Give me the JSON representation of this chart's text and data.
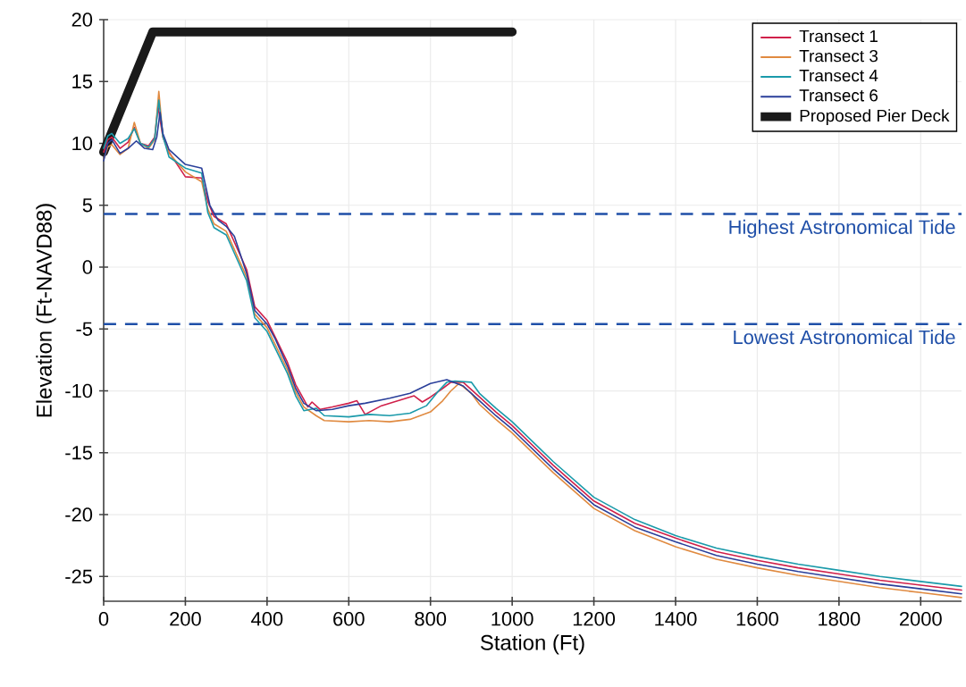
{
  "chart_data": {
    "type": "line",
    "xlabel": "Station (Ft)",
    "ylabel": "Elevation (Ft-NAVD88)",
    "xlim": [
      0,
      2100
    ],
    "ylim": [
      -27,
      20
    ],
    "xticks": [
      0,
      200,
      400,
      600,
      800,
      1000,
      1200,
      1400,
      1600,
      1800,
      2000
    ],
    "yticks": [
      -25,
      -20,
      -15,
      -10,
      -5,
      0,
      5,
      10,
      15,
      20
    ],
    "grid": true,
    "legend": "top right",
    "line_style": "solid",
    "marker": "none",
    "ref_lines": [
      {
        "axis": "y",
        "value": 4.3,
        "label": "Highest Astronomical Tide",
        "color": "#1f4fa8",
        "line_style": "dashed"
      },
      {
        "axis": "y",
        "value": -4.6,
        "label": "Lowest Astronomical Tide",
        "color": "#1f4fa8",
        "line_style": "dashed"
      }
    ],
    "series": [
      {
        "name": "Transect 1",
        "color": "#d0204a",
        "x": [
          0,
          10,
          20,
          40,
          60,
          75,
          90,
          110,
          125,
          133,
          145,
          160,
          200,
          240,
          255,
          270,
          300,
          350,
          370,
          400,
          450,
          470,
          490,
          500,
          510,
          530,
          560,
          600,
          620,
          640,
          680,
          720,
          760,
          780,
          800,
          830,
          850,
          880,
          920,
          960,
          1000,
          1100,
          1200,
          1300,
          1400,
          1500,
          1600,
          1700,
          1800,
          1900,
          2000,
          2100
        ],
        "values": [
          9.3,
          10.3,
          10.5,
          9.6,
          10.1,
          11.3,
          10,
          9.8,
          10.5,
          13,
          10.5,
          9.3,
          7.3,
          7.2,
          5.3,
          4.1,
          3.5,
          -0.2,
          -3.2,
          -4.3,
          -7.7,
          -9.5,
          -10.7,
          -11.3,
          -10.9,
          -11.5,
          -11.3,
          -11,
          -10.8,
          -11.9,
          -11.2,
          -10.8,
          -10.4,
          -10.9,
          -10.5,
          -9.8,
          -9.3,
          -9.3,
          -10.5,
          -11.7,
          -12.8,
          -16,
          -18.9,
          -20.7,
          -21.9,
          -23,
          -23.7,
          -24.3,
          -24.8,
          -25.3,
          -25.7,
          -26.1
        ]
      },
      {
        "name": "Transect 3",
        "color": "#e08a40",
        "x": [
          0,
          10,
          20,
          40,
          60,
          75,
          90,
          110,
          125,
          135,
          145,
          160,
          200,
          240,
          255,
          270,
          300,
          350,
          370,
          400,
          450,
          470,
          490,
          520,
          540,
          600,
          650,
          700,
          750,
          800,
          830,
          850,
          870,
          900,
          920,
          960,
          1000,
          1100,
          1200,
          1300,
          1400,
          1500,
          1600,
          1700,
          1800,
          1900,
          2000,
          2100
        ],
        "values": [
          8.7,
          9.7,
          9.9,
          9.1,
          9.6,
          11.7,
          10,
          9.6,
          10.3,
          14.2,
          10.6,
          9.2,
          7.7,
          6.9,
          4.7,
          3.5,
          2.9,
          -0.8,
          -3.8,
          -4.9,
          -8.3,
          -10.1,
          -11.3,
          -12,
          -12.4,
          -12.5,
          -12.4,
          -12.5,
          -12.3,
          -11.7,
          -10.8,
          -10,
          -9.4,
          -10.2,
          -11.1,
          -12.3,
          -13.4,
          -16.6,
          -19.5,
          -21.3,
          -22.6,
          -23.6,
          -24.3,
          -24.9,
          -25.4,
          -25.9,
          -26.3,
          -26.7
        ]
      },
      {
        "name": "Transect 4",
        "color": "#1a9aaa",
        "x": [
          0,
          10,
          20,
          40,
          60,
          75,
          90,
          110,
          125,
          135,
          145,
          160,
          200,
          240,
          255,
          270,
          300,
          350,
          370,
          400,
          450,
          470,
          490,
          520,
          540,
          600,
          650,
          700,
          750,
          790,
          820,
          840,
          860,
          900,
          920,
          960,
          1000,
          1100,
          1200,
          1300,
          1400,
          1500,
          1600,
          1700,
          1800,
          1900,
          2000,
          2100
        ],
        "values": [
          9.6,
          10.6,
          10.8,
          10,
          10.4,
          11.2,
          10,
          9.7,
          10.4,
          13.5,
          10.6,
          8.9,
          8,
          7.6,
          4.4,
          3.2,
          2.6,
          -1.1,
          -4.1,
          -5.2,
          -8.6,
          -10.4,
          -11.6,
          -11.4,
          -12,
          -12.1,
          -11.9,
          -12,
          -11.8,
          -11.2,
          -10,
          -9.3,
          -9.2,
          -9.3,
          -10.2,
          -11.4,
          -12.5,
          -15.7,
          -18.6,
          -20.4,
          -21.7,
          -22.7,
          -23.4,
          -24,
          -24.5,
          -25,
          -25.4,
          -25.8
        ]
      },
      {
        "name": "Transect 6",
        "color": "#2a3f9a",
        "x": [
          0,
          10,
          20,
          40,
          60,
          80,
          100,
          120,
          130,
          138,
          145,
          160,
          200,
          240,
          260,
          280,
          300,
          320,
          350,
          370,
          400,
          420,
          450,
          470,
          490,
          520,
          560,
          600,
          640,
          700,
          750,
          800,
          840,
          880,
          920,
          960,
          1000,
          1100,
          1200,
          1300,
          1400,
          1500,
          1600,
          1700,
          1800,
          1900,
          2000,
          2100
        ],
        "values": [
          8.6,
          10,
          10.3,
          9.2,
          9.6,
          10.2,
          9.6,
          9.5,
          10.5,
          12.5,
          10.8,
          9.5,
          8.3,
          8,
          5,
          3.8,
          3.3,
          2.5,
          -0.5,
          -3.5,
          -4.6,
          -5.8,
          -8,
          -9.8,
          -11,
          -11.6,
          -11.5,
          -11.2,
          -11,
          -10.6,
          -10.2,
          -9.4,
          -9.1,
          -9.6,
          -10.8,
          -12,
          -13.1,
          -16.3,
          -19.2,
          -21,
          -22.2,
          -23.3,
          -24,
          -24.6,
          -25.1,
          -25.6,
          -26,
          -26.4
        ]
      },
      {
        "name": "Proposed Pier Deck",
        "color": "#1a1a1a",
        "x": [
          0,
          120,
          1000
        ],
        "values": [
          9.3,
          19,
          19
        ]
      }
    ]
  }
}
